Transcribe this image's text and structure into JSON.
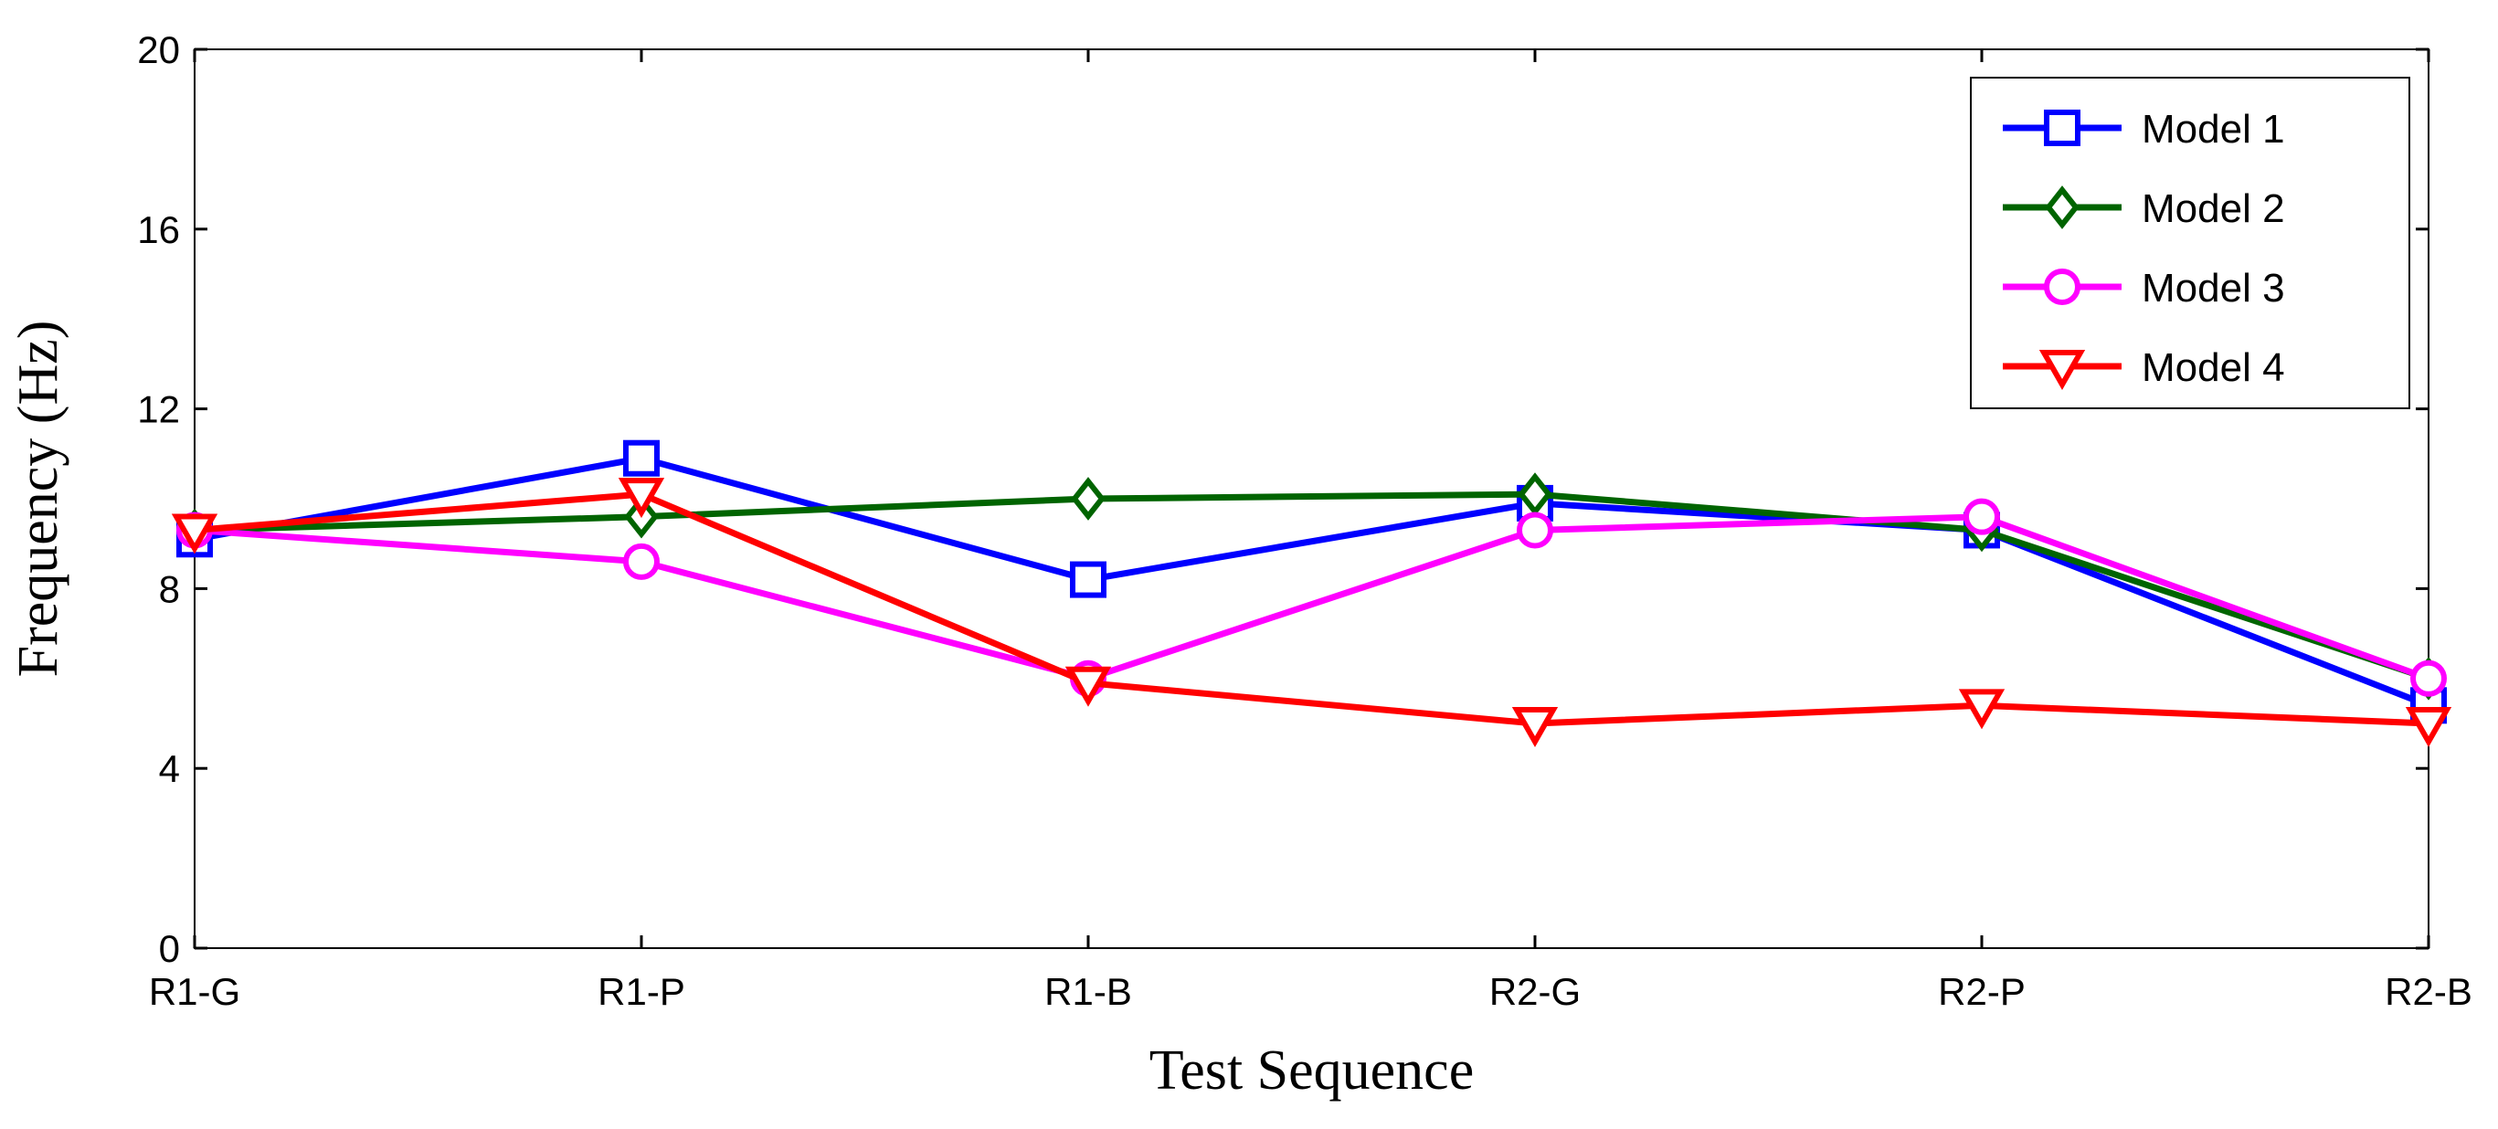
{
  "chart_data": {
    "type": "line",
    "title": "",
    "xlabel": "Test Sequence",
    "ylabel": "Frequency (Hz)",
    "categories": [
      "R1-G",
      "R1-P",
      "R1-B",
      "R2-G",
      "R2-P",
      "R2-B"
    ],
    "ylim": [
      0,
      20
    ],
    "yticks": [
      0,
      4,
      8,
      12,
      16,
      20
    ],
    "grid": false,
    "legend_position": "top-right",
    "series": [
      {
        "name": "Model 1",
        "color": "#0000ff",
        "marker": "square",
        "values": [
          9.1,
          10.9,
          8.2,
          9.9,
          9.3,
          5.4
        ]
      },
      {
        "name": "Model 2",
        "color": "#006400",
        "marker": "diamond",
        "values": [
          9.3,
          9.6,
          10.0,
          10.1,
          9.3,
          6.0
        ]
      },
      {
        "name": "Model 3",
        "color": "#ff00ff",
        "marker": "circle",
        "values": [
          9.3,
          8.6,
          6.0,
          9.3,
          9.6,
          6.0
        ]
      },
      {
        "name": "Model 4",
        "color": "#ff0000",
        "marker": "triangle-down",
        "values": [
          9.3,
          10.1,
          5.9,
          5.0,
          5.4,
          5.0
        ]
      }
    ]
  }
}
